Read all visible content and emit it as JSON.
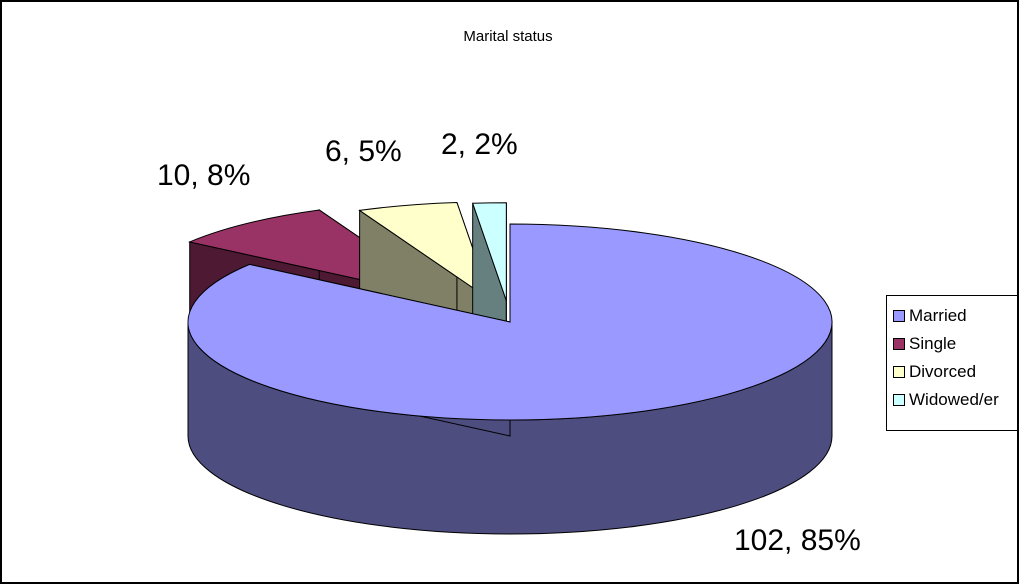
{
  "chart_data": {
    "type": "pie",
    "title": "Marital status",
    "categories": [
      "Married",
      "Single",
      "Divorced",
      "Widowed/er"
    ],
    "values": [
      102,
      10,
      6,
      2
    ],
    "percentages": [
      "85%",
      "8%",
      "5%",
      "2%"
    ],
    "data_labels": [
      "102, 85%",
      "10, 8%",
      "6, 5%",
      "2, 2%"
    ],
    "colors": [
      "#9999ff",
      "#993366",
      "#ffffcc",
      "#ccffff"
    ],
    "exploded": [
      "Single",
      "Divorced",
      "Widowed/er"
    ],
    "three_d": true,
    "legend_position": "right"
  }
}
